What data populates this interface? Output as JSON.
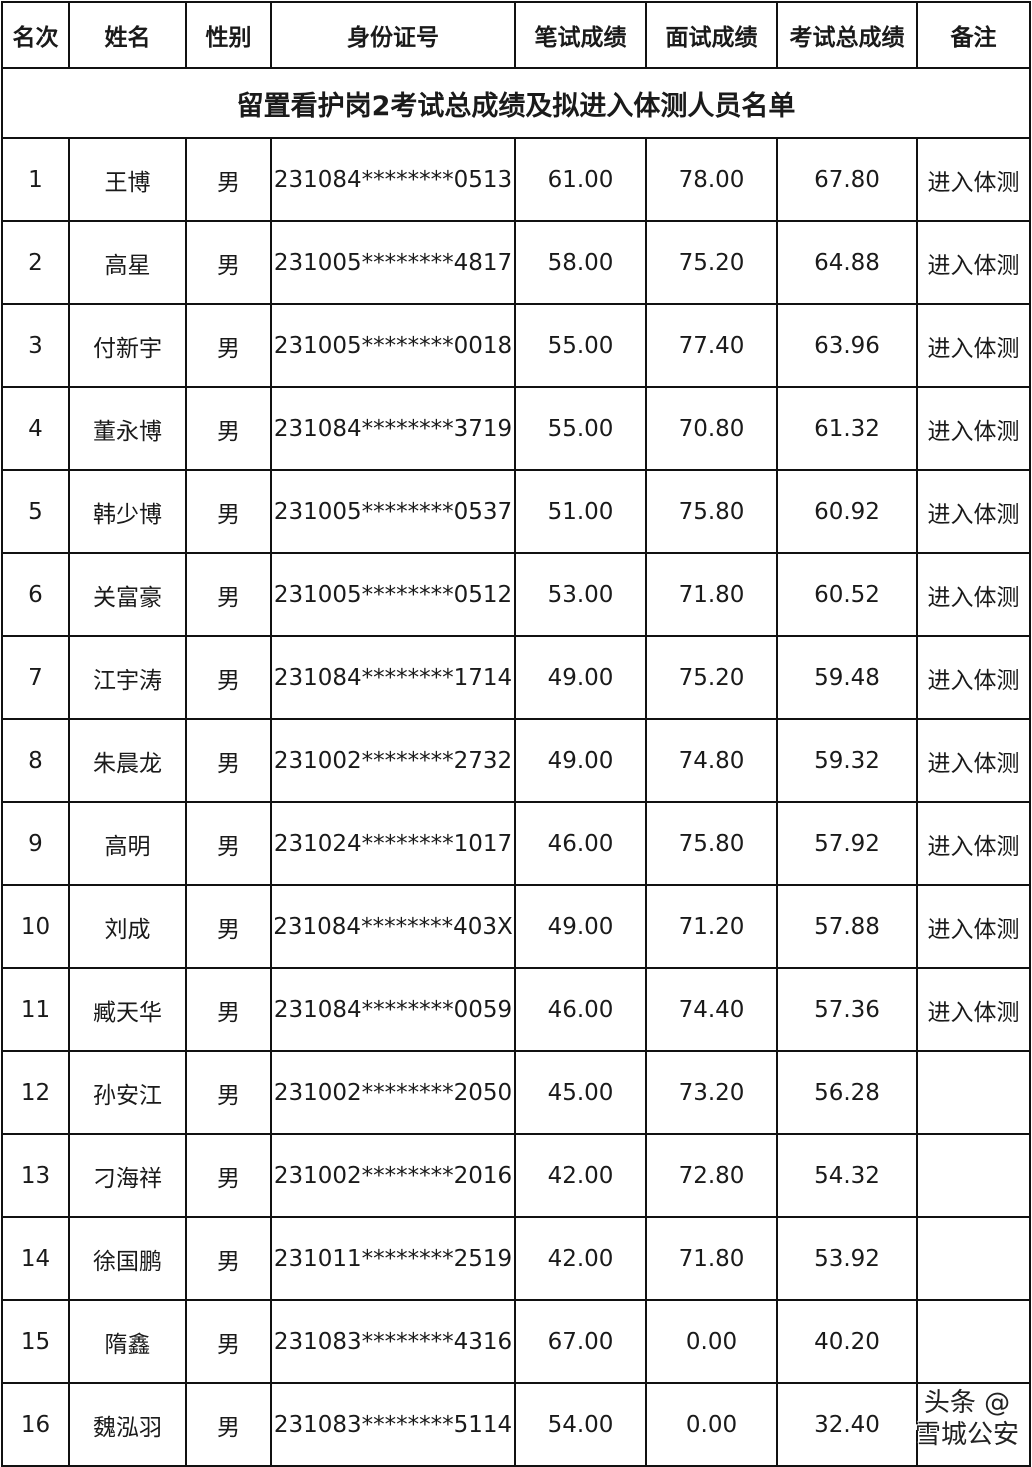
{
  "title": "留置看护岗2考试总成绩及拟进入体测人员名单",
  "headers": [
    "名次",
    "姓名",
    "性别",
    "身份证号",
    "笔试成绩",
    "面试成绩",
    "考试总成绩",
    "备注"
  ],
  "rows": [
    [
      "1",
      "王博",
      "男",
      "231084********0513",
      "61.00",
      "78.00",
      "67.80",
      "进入体测"
    ],
    [
      "2",
      "高星",
      "男",
      "231005********4817",
      "58.00",
      "75.20",
      "64.88",
      "进入体测"
    ],
    [
      "3",
      "付新宇",
      "男",
      "231005********0018",
      "55.00",
      "77.40",
      "63.96",
      "进入体测"
    ],
    [
      "4",
      "董永博",
      "男",
      "231084********3719",
      "55.00",
      "70.80",
      "61.32",
      "进入体测"
    ],
    [
      "5",
      "韩少博",
      "男",
      "231005********0537",
      "51.00",
      "75.80",
      "60.92",
      "进入体测"
    ],
    [
      "6",
      "关富豪",
      "男",
      "231005********0512",
      "53.00",
      "71.80",
      "60.52",
      "进入体测"
    ],
    [
      "7",
      "江宇涛",
      "男",
      "231084********1714",
      "49.00",
      "75.20",
      "59.48",
      "进入体测"
    ],
    [
      "8",
      "朱晨龙",
      "男",
      "231002********2732",
      "49.00",
      "74.80",
      "59.32",
      "进入体测"
    ],
    [
      "9",
      "高明",
      "男",
      "231024********1017",
      "46.00",
      "75.80",
      "57.92",
      "进入体测"
    ],
    [
      "10",
      "刘成",
      "男",
      "231084********403X",
      "49.00",
      "71.20",
      "57.88",
      "进入体测"
    ],
    [
      "11",
      "臧天华",
      "男",
      "231084********0059",
      "46.00",
      "74.40",
      "57.36",
      "进入体测"
    ],
    [
      "12",
      "孙安江",
      "男",
      "231002********2050",
      "45.00",
      "73.20",
      "56.28",
      ""
    ],
    [
      "13",
      "刁海祥",
      "男",
      "231002********2016",
      "42.00",
      "72.80",
      "54.32",
      ""
    ],
    [
      "14",
      "徐国鹏",
      "男",
      "231011********2519",
      "42.00",
      "71.80",
      "53.92",
      ""
    ],
    [
      "15",
      "隋鑫",
      "男",
      "231083********4316",
      "67.00",
      "0.00",
      "40.20",
      ""
    ],
    [
      "16",
      "魏泓羽",
      "男",
      "231083********5114",
      "54.00",
      "0.00",
      "32.40",
      ""
    ]
  ],
  "watermark": "头条 @雪城公安"
}
